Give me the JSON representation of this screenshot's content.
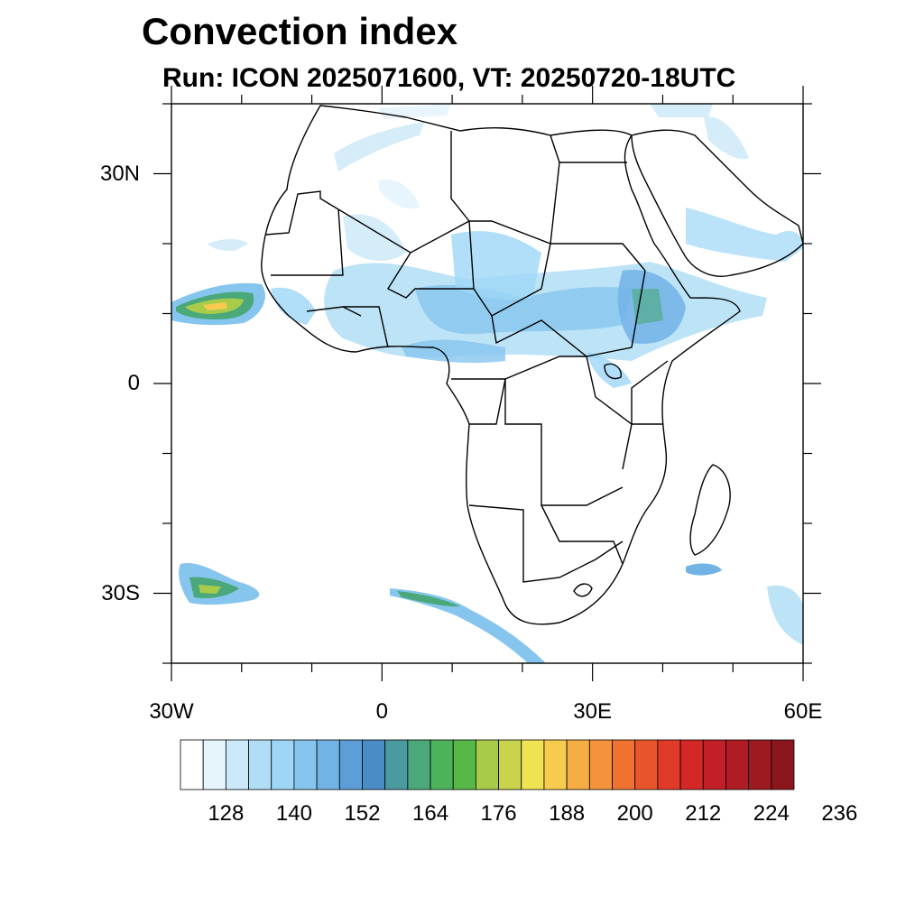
{
  "title": "Convection index",
  "subtitle": "Run: ICON 2025071600,  VT: 20250720-18UTC",
  "map": {
    "region": "Africa",
    "lat_range": [
      -40,
      40
    ],
    "lon_range": [
      -30,
      60
    ],
    "lat_ticks": [
      {
        "value": 30,
        "label": "30N"
      },
      {
        "value": 0,
        "label": "0"
      },
      {
        "value": -30,
        "label": "30S"
      }
    ],
    "lon_ticks": [
      {
        "value": -30,
        "label": "30W"
      },
      {
        "value": 0,
        "label": "0"
      },
      {
        "value": 30,
        "label": "30E"
      },
      {
        "value": 60,
        "label": "60E"
      }
    ]
  },
  "colorbar": {
    "colors": [
      "#ffffff",
      "#e6f4fc",
      "#cbe9f8",
      "#b1def6",
      "#9dd6f6",
      "#86c6ee",
      "#72b3e6",
      "#5d9ed8",
      "#4a8cc6",
      "#4a9aa0",
      "#4aa87a",
      "#4db35a",
      "#58b847",
      "#a8cc4a",
      "#c9d44c",
      "#efe352",
      "#f7cc4e",
      "#f6ae44",
      "#f49339",
      "#ef7230",
      "#e8552a",
      "#df3b28",
      "#d42827",
      "#c21f26",
      "#b01c24",
      "#9e1a21",
      "#8b171d"
    ],
    "labels": [
      "128",
      "140",
      "152",
      "164",
      "176",
      "188",
      "200",
      "212",
      "224",
      "236"
    ],
    "label_bins": [
      2,
      5,
      8,
      11,
      14,
      17,
      20,
      23,
      26,
      29
    ]
  }
}
